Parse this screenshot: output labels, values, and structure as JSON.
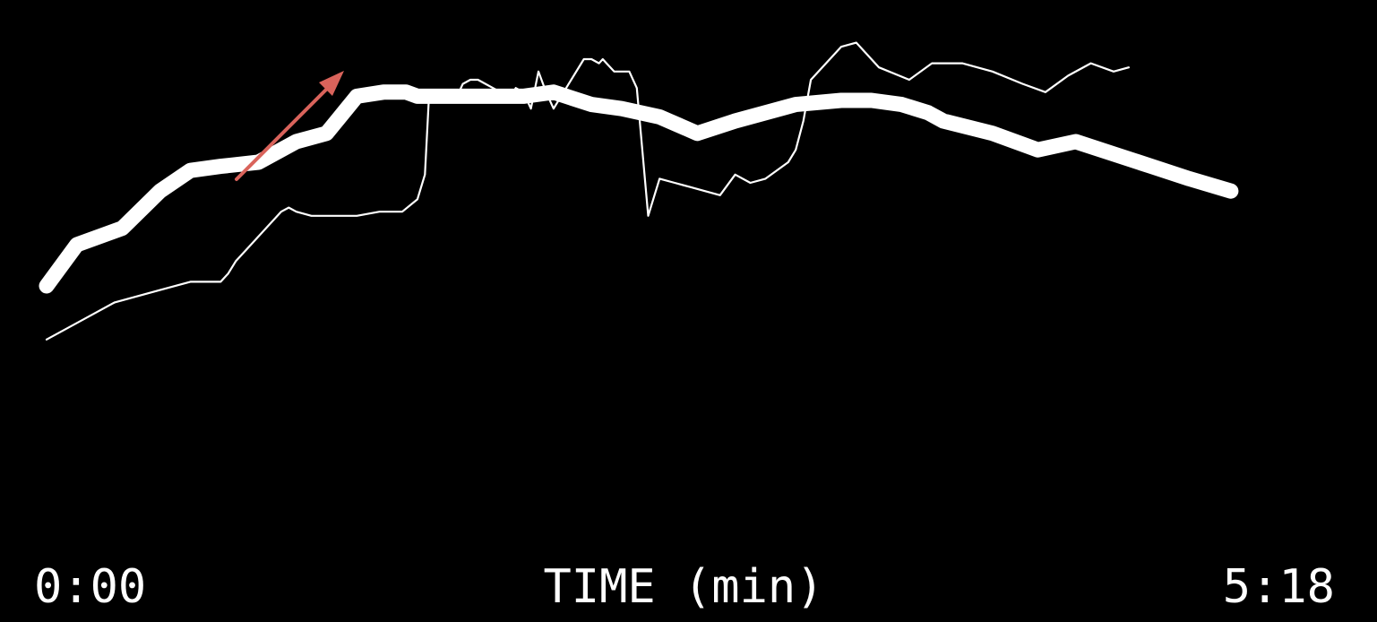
{
  "chart_data": {
    "type": "line",
    "xlabel": "TIME (min)",
    "x_start_label": "0:00",
    "x_end_label": "5:18",
    "xlim": [
      0,
      318
    ],
    "ylim": [
      0,
      100
    ],
    "grid": false,
    "legend": "none",
    "colors": {
      "background": "#000000",
      "series": "#ffffff",
      "text": "#ffffff",
      "annotation_arrow": "#d9635b"
    },
    "series": [
      {
        "style": "thick",
        "x": [
          0,
          8,
          20,
          30,
          38,
          46,
          56,
          66,
          74,
          82,
          89,
          92,
          95,
          98,
          110,
          118,
          126,
          134,
          144,
          152,
          162,
          172,
          182,
          198,
          210,
          218,
          226,
          233,
          237,
          250,
          262,
          272,
          282,
          292,
          302,
          313
        ],
        "y": [
          35,
          45,
          49,
          58,
          63,
          64,
          65,
          70,
          72,
          81,
          82,
          82,
          82,
          81,
          81,
          81,
          81,
          82,
          79,
          78,
          76,
          72,
          75,
          79,
          80,
          80,
          79,
          77,
          75,
          72,
          68,
          70,
          67,
          64,
          61,
          58
        ]
      },
      {
        "style": "thin",
        "x": [
          0,
          10,
          18,
          30,
          38,
          46,
          48,
          50,
          54,
          62,
          64,
          66,
          70,
          76,
          82,
          88,
          94,
          98,
          100,
          101,
          102,
          104,
          108,
          110,
          112,
          114,
          116,
          118,
          120,
          122,
          124,
          126,
          128,
          130,
          132,
          134,
          138,
          142,
          144,
          146,
          147,
          148,
          150,
          154,
          156,
          159,
          162,
          166,
          170,
          174,
          178,
          182,
          186,
          190,
          196,
          198,
          200,
          201,
          202,
          206,
          210,
          214,
          220,
          228,
          234,
          242,
          250,
          258,
          264,
          270,
          276,
          282,
          286
        ],
        "y": [
          22,
          27,
          31,
          34,
          36,
          36,
          38,
          41,
          45,
          53,
          54,
          53,
          52,
          52,
          52,
          53,
          53,
          56,
          62,
          80,
          80,
          80,
          80,
          84,
          85,
          85,
          84,
          83,
          82,
          80,
          83,
          82,
          78,
          87,
          82,
          78,
          84,
          90,
          90,
          89,
          90,
          89,
          87,
          87,
          83,
          52,
          61,
          60,
          59,
          58,
          57,
          62,
          60,
          61,
          65,
          68,
          75,
          80,
          85,
          89,
          93,
          94,
          88,
          85,
          89,
          89,
          87,
          84,
          82,
          86,
          89,
          87,
          88
        ]
      }
    ],
    "annotation": {
      "type": "arrow"
    }
  }
}
